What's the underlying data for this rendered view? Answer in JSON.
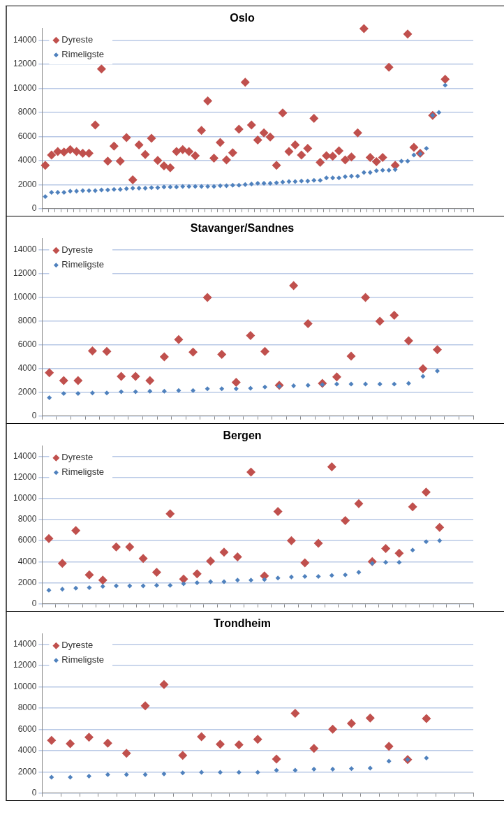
{
  "chart_data": [
    {
      "type": "scatter",
      "title": "Oslo",
      "categories": [
        null,
        null,
        null,
        null,
        null,
        null,
        null,
        null,
        null,
        null,
        null,
        null,
        null,
        null,
        null,
        null,
        null,
        null,
        null,
        null,
        null,
        null,
        null,
        null,
        null,
        null,
        null,
        null,
        null,
        null,
        null,
        null,
        null,
        null,
        null,
        null,
        null,
        null,
        null,
        null,
        null,
        null,
        null,
        null,
        null,
        null,
        null,
        null,
        null,
        null,
        null,
        null,
        null,
        null,
        null,
        null,
        null,
        null,
        null,
        null,
        null,
        null,
        null,
        null,
        null,
        null,
        null,
        null,
        null
      ],
      "series": [
        {
          "name": "Dyreste",
          "color": "#c0504d",
          "values": [
            3600,
            4450,
            4750,
            4700,
            4900,
            4750,
            4600,
            4600,
            6950,
            11600,
            3950,
            5200,
            3950,
            5900,
            2400,
            5300,
            4500,
            5850,
            4000,
            3550,
            3400,
            4750,
            4900,
            4750,
            4400,
            6500,
            8950,
            4200,
            5500,
            4050,
            4650,
            6600,
            10500,
            6950,
            5700,
            6300,
            5950,
            3600,
            7950,
            4750,
            5300,
            4450,
            5000,
            7500,
            3850,
            4400,
            4350,
            4800,
            4050,
            4300,
            6300,
            14950,
            4250,
            3900,
            4250,
            11750,
            3600,
            null,
            14500,
            5100,
            4600,
            null,
            7750,
            null,
            10750,
            null,
            null,
            null,
            null
          ]
        },
        {
          "name": "Rimeligste",
          "color": "#4f81bd",
          "values": [
            1000,
            1350,
            1350,
            1350,
            1450,
            1450,
            1500,
            1500,
            1500,
            1550,
            1550,
            1600,
            1600,
            1650,
            1700,
            1700,
            1700,
            1750,
            1750,
            1800,
            1800,
            1800,
            1850,
            1850,
            1850,
            1850,
            1850,
            1850,
            1900,
            1900,
            1950,
            1950,
            2000,
            2050,
            2100,
            2100,
            2100,
            2150,
            2200,
            2250,
            2250,
            2300,
            2300,
            2350,
            2350,
            2550,
            2550,
            2550,
            2650,
            2700,
            2700,
            3000,
            3000,
            3150,
            3200,
            3200,
            3250,
            3950,
            3950,
            4450,
            4550,
            5000,
            7750,
            8000,
            10250,
            null,
            null,
            null,
            null
          ]
        }
      ],
      "ylim": [
        0,
        15000
      ],
      "yticks": [
        0,
        2000,
        4000,
        6000,
        8000,
        10000,
        12000,
        14000
      ],
      "grid": "y",
      "legend": "top left",
      "marker": "diamond",
      "tick_labels": "y"
    },
    {
      "type": "scatter",
      "title": "Stavanger/Sandnes",
      "categories": [
        null,
        null,
        null,
        null,
        null,
        null,
        null,
        null,
        null,
        null,
        null,
        null,
        null,
        null,
        null,
        null,
        null,
        null,
        null,
        null,
        null,
        null,
        null,
        null,
        null,
        null,
        null,
        null,
        null,
        null
      ],
      "series": [
        {
          "name": "Dyreste",
          "color": "#c0504d",
          "values": [
            3650,
            3000,
            3000,
            5500,
            5450,
            3350,
            3350,
            3000,
            5000,
            6450,
            5400,
            10000,
            5200,
            2850,
            6800,
            5450,
            2600,
            11000,
            7800,
            2750,
            3300,
            5050,
            10000,
            8000,
            8500,
            6350,
            4000,
            5600,
            null,
            null
          ]
        },
        {
          "name": "Rimeligste",
          "color": "#4f81bd",
          "values": [
            1550,
            1900,
            1900,
            1950,
            1950,
            2050,
            2050,
            2100,
            2100,
            2150,
            2150,
            2300,
            2300,
            2300,
            2350,
            2450,
            2500,
            2550,
            2600,
            2650,
            2700,
            2700,
            2700,
            2700,
            2700,
            2750,
            3350,
            3800,
            null,
            null
          ]
        }
      ],
      "ylim": [
        0,
        15000
      ],
      "yticks": [
        0,
        2000,
        4000,
        6000,
        8000,
        10000,
        12000,
        14000
      ],
      "grid": "y",
      "legend": "top left",
      "marker": "diamond",
      "tick_labels": "y"
    },
    {
      "type": "scatter",
      "title": "Bergen",
      "categories": [
        null,
        null,
        null,
        null,
        null,
        null,
        null,
        null,
        null,
        null,
        null,
        null,
        null,
        null,
        null,
        null,
        null,
        null,
        null,
        null,
        null,
        null,
        null,
        null,
        null,
        null,
        null,
        null,
        null,
        null,
        null,
        null
      ],
      "series": [
        {
          "name": "Dyreste",
          "color": "#c0504d",
          "values": [
            6200,
            3850,
            6950,
            2750,
            2250,
            5400,
            5400,
            4300,
            3000,
            8550,
            2350,
            2850,
            4050,
            4900,
            4450,
            12500,
            2650,
            8750,
            6000,
            3900,
            5750,
            13000,
            7900,
            9500,
            4000,
            5250,
            4800,
            9200,
            10600,
            7250,
            null,
            null
          ]
        },
        {
          "name": "Rimeligste",
          "color": "#4f81bd",
          "values": [
            1300,
            1400,
            1500,
            1550,
            1650,
            1700,
            1700,
            1700,
            1750,
            1750,
            1900,
            2000,
            2100,
            2100,
            2250,
            2250,
            2300,
            2450,
            2550,
            2600,
            2600,
            2700,
            2750,
            3000,
            3850,
            3950,
            3950,
            5100,
            5900,
            6000,
            null,
            null
          ]
        }
      ],
      "ylim": [
        0,
        15000
      ],
      "yticks": [
        0,
        2000,
        4000,
        6000,
        8000,
        10000,
        12000,
        14000
      ],
      "grid": "y",
      "legend": "top left",
      "marker": "diamond",
      "tick_labels": "y"
    },
    {
      "type": "scatter",
      "title": "Trondheim",
      "categories": [
        null,
        null,
        null,
        null,
        null,
        null,
        null,
        null,
        null,
        null,
        null,
        null,
        null,
        null,
        null,
        null,
        null,
        null,
        null,
        null,
        null,
        null,
        null
      ],
      "series": [
        {
          "name": "Dyreste",
          "color": "#c0504d",
          "values": [
            4950,
            4650,
            5250,
            4700,
            3750,
            8200,
            10200,
            3550,
            5300,
            4600,
            4550,
            5050,
            3200,
            7500,
            4200,
            6000,
            6550,
            7050,
            4400,
            3150,
            7000,
            null,
            null
          ]
        },
        {
          "name": "Rimeligste",
          "color": "#4f81bd",
          "values": [
            1500,
            1500,
            1600,
            1750,
            1750,
            1750,
            1800,
            1900,
            1950,
            1950,
            1950,
            1950,
            2150,
            2150,
            2250,
            2250,
            2300,
            2350,
            3000,
            3150,
            3300,
            null,
            null
          ]
        }
      ],
      "ylim": [
        0,
        15000
      ],
      "yticks": [
        0,
        2000,
        4000,
        6000,
        8000,
        10000,
        12000,
        14000
      ],
      "grid": "y",
      "legend": "top left",
      "marker": "diamond",
      "tick_labels": "y"
    }
  ]
}
